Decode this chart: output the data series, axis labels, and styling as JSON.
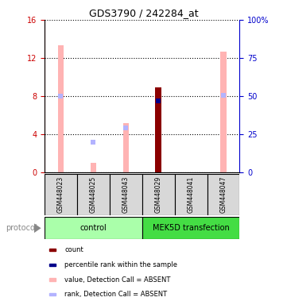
{
  "title": "GDS3790 / 242284_at",
  "samples": [
    "GSM448023",
    "GSM448025",
    "GSM448043",
    "GSM448029",
    "GSM448041",
    "GSM448047"
  ],
  "value_absent": [
    13.3,
    1.0,
    5.2,
    null,
    null,
    12.7
  ],
  "rank_absent_pct": [
    50.0,
    20.0,
    29.0,
    null,
    null,
    50.5
  ],
  "value_present": [
    null,
    null,
    null,
    8.9,
    null,
    null
  ],
  "rank_present_pct": [
    null,
    null,
    null,
    47.0,
    null,
    null
  ],
  "ylim_left": [
    0,
    16
  ],
  "ylim_right": [
    0,
    100
  ],
  "yticks_left": [
    0,
    4,
    8,
    12,
    16
  ],
  "yticks_right": [
    0,
    25,
    50,
    75,
    100
  ],
  "ytick_labels_right": [
    "0",
    "25",
    "50",
    "75",
    "100%"
  ],
  "left_color": "#cc0000",
  "right_color": "#0000cc",
  "value_absent_color": "#ffb3b3",
  "rank_absent_color": "#b3b3ff",
  "value_present_color": "#8b0000",
  "rank_present_color": "#00008b",
  "bg_color": "#d8d8d8",
  "control_color": "#aaffaa",
  "mek_color": "#44dd44",
  "protocol_label": "protocol",
  "fig_width": 3.61,
  "fig_height": 3.84,
  "bar_width": 0.18
}
